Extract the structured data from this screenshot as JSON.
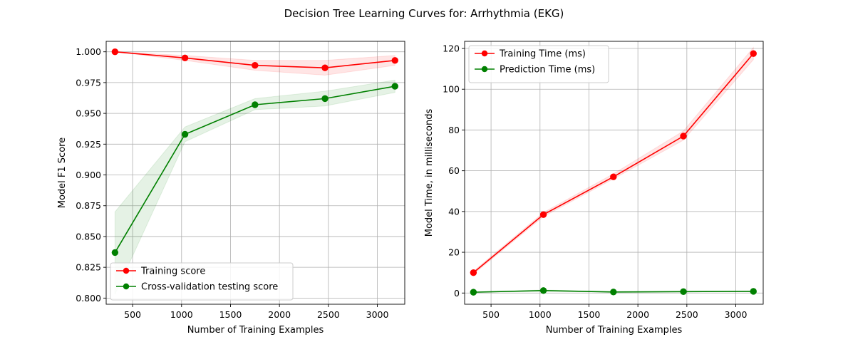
{
  "figure": {
    "suptitle": "Decision Tree Learning Curves for: Arrhythmia (EKG)"
  },
  "chart_data": [
    {
      "type": "line",
      "title": "",
      "xlabel": "Number of Training Examples",
      "ylabel": "Model F1 Score",
      "xlim": [
        230,
        3280
      ],
      "ylim": [
        0.795,
        1.0085
      ],
      "xticks": [
        500,
        1000,
        1500,
        2000,
        2500,
        3000
      ],
      "xtick_labels": [
        "500",
        "1000",
        "1500",
        "2000",
        "2500",
        "3000"
      ],
      "yticks": [
        0.8,
        0.825,
        0.85,
        0.875,
        0.9,
        0.925,
        0.95,
        0.975,
        1.0
      ],
      "ytick_labels": [
        "0.800",
        "0.825",
        "0.850",
        "0.875",
        "0.900",
        "0.925",
        "0.950",
        "0.975",
        "1.000"
      ],
      "grid": true,
      "legend_position": "lower-left",
      "x": [
        320,
        1035,
        1750,
        2465,
        3180
      ],
      "series": [
        {
          "name": "Training score",
          "color": "#ff0000",
          "marker": "circle",
          "values": [
            1.0,
            0.995,
            0.989,
            0.987,
            0.993
          ],
          "band_low": [
            1.0,
            0.993,
            0.985,
            0.981,
            0.989
          ],
          "band_high": [
            1.0,
            0.997,
            0.993,
            0.993,
            0.997
          ]
        },
        {
          "name": "Cross-validation testing score",
          "color": "#008000",
          "marker": "circle",
          "values": [
            0.837,
            0.933,
            0.957,
            0.962,
            0.972
          ],
          "band_low": [
            0.803,
            0.927,
            0.953,
            0.956,
            0.967
          ],
          "band_high": [
            0.87,
            0.939,
            0.962,
            0.968,
            0.977
          ]
        }
      ]
    },
    {
      "type": "line",
      "title": "",
      "xlabel": "Number of Training Examples",
      "ylabel": "Model Time, in milliseconds",
      "xlim": [
        230,
        3280
      ],
      "ylim": [
        -5.5,
        123.5
      ],
      "xticks": [
        500,
        1000,
        1500,
        2000,
        2500,
        3000
      ],
      "xtick_labels": [
        "500",
        "1000",
        "1500",
        "2000",
        "2500",
        "3000"
      ],
      "yticks": [
        0,
        20,
        40,
        60,
        80,
        100,
        120
      ],
      "ytick_labels": [
        "0",
        "20",
        "40",
        "60",
        "80",
        "100",
        "120"
      ],
      "grid": true,
      "legend_position": "upper-left",
      "x": [
        320,
        1035,
        1750,
        2465,
        3180
      ],
      "series": [
        {
          "name": "Training Time (ms)",
          "color": "#ff0000",
          "marker": "circle",
          "values": [
            10,
            38.5,
            57,
            77,
            117.5
          ],
          "band_low": [
            9.3,
            37.5,
            56,
            75,
            114.5
          ],
          "band_high": [
            10.7,
            39.5,
            58.5,
            79.5,
            120.5
          ]
        },
        {
          "name": "Prediction Time (ms)",
          "color": "#008000",
          "marker": "circle",
          "values": [
            0.4,
            1.2,
            0.5,
            0.7,
            0.8
          ],
          "band_low": [
            0.2,
            0.9,
            0.3,
            0.5,
            0.6
          ],
          "band_high": [
            0.6,
            1.5,
            0.7,
            0.9,
            1.0
          ]
        }
      ]
    }
  ]
}
